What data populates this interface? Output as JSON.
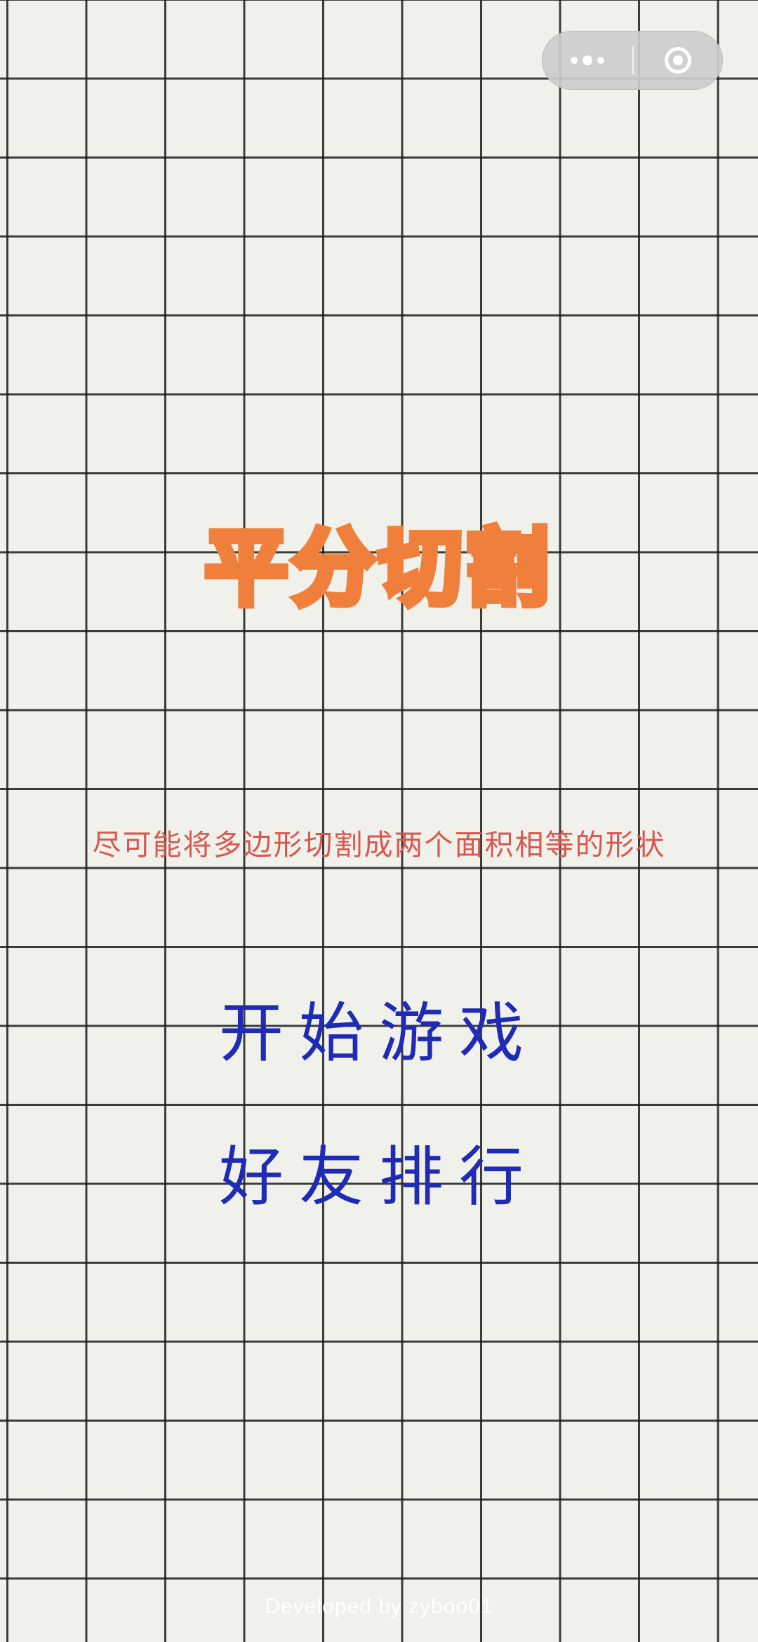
{
  "capsule": {
    "more_icon": "more-dots-icon",
    "close_icon": "close-circle-icon"
  },
  "title": "平分切割",
  "subtitle": "尽可能将多边形切割成两个面积相等的形状",
  "menu": {
    "start": "开始游戏",
    "rank": "好友排行"
  },
  "footer": "Developed by  zyboo01",
  "colors": {
    "background": "#f1f1ec",
    "grid": "#1c1c1c",
    "title": "#f07f3c",
    "subtitle": "#d8584f",
    "menu": "#1f2bb4",
    "footer": "#ffffff"
  }
}
